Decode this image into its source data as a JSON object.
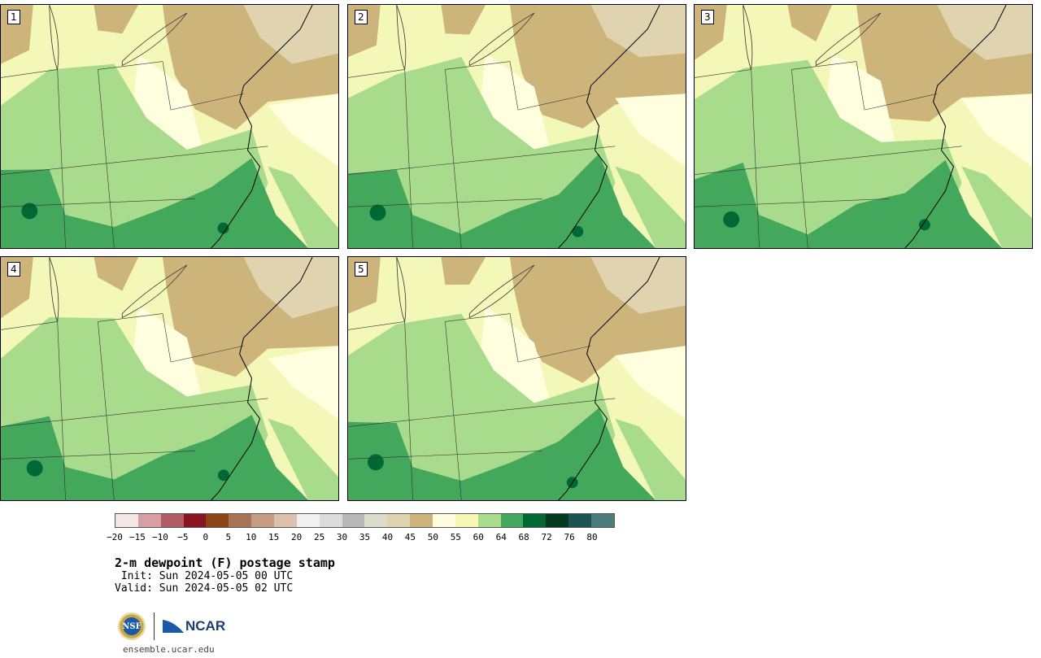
{
  "panels": [
    {
      "label": "1"
    },
    {
      "label": "2"
    },
    {
      "label": "3"
    },
    {
      "label": "4"
    },
    {
      "label": "5"
    }
  ],
  "colorbar": {
    "colors": [
      "#f4e6e6",
      "#d4a0a4",
      "#b05c62",
      "#8a1422",
      "#8a4416",
      "#a87454",
      "#c49c84",
      "#dcc0b0",
      "#f0f0f0",
      "#dcdcdc",
      "#b8b8b8",
      "#dcdccc",
      "#e0d4b0",
      "#ccb47c",
      "#fefede",
      "#f4f8b4",
      "#a8dc8c",
      "#44a85c",
      "#006834",
      "#003c1c",
      "#1c5454",
      "#4c7c7c"
    ],
    "ticks": [
      "−20",
      "−15",
      "−10",
      "−5",
      "0",
      "5",
      "10",
      "15",
      "20",
      "25",
      "30",
      "35",
      "40",
      "45",
      "50",
      "55",
      "60",
      "64",
      "68",
      "72",
      "76",
      "80"
    ]
  },
  "title": "2-m dewpoint (F) postage stamp",
  "init": " Init: Sun 2024-05-05 00 UTC",
  "valid": "Valid: Sun 2024-05-05 02 UTC",
  "logos": {
    "nsf": "NSF",
    "ncar": "NCAR"
  },
  "footer": "ensemble.ucar.edu"
}
